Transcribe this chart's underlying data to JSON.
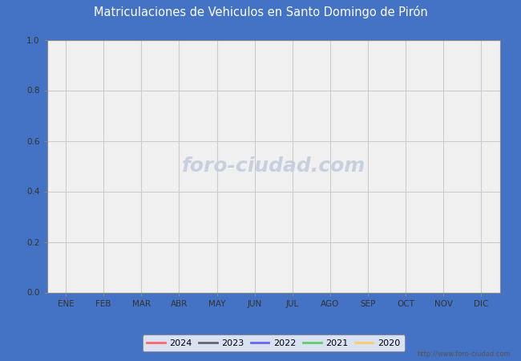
{
  "title": "Matriculaciones de Vehiculos en Santo Domingo de Pirón",
  "title_color": "#ffffff",
  "title_bg_color": "#4472c4",
  "months": [
    "ENE",
    "FEB",
    "MAR",
    "ABR",
    "MAY",
    "JUN",
    "JUL",
    "AGO",
    "SEP",
    "OCT",
    "NOV",
    "DIC"
  ],
  "ylim": [
    0.0,
    1.0
  ],
  "yticks": [
    0.0,
    0.2,
    0.4,
    0.6,
    0.8,
    1.0
  ],
  "series": [
    {
      "label": "2024",
      "color": "#ff6666"
    },
    {
      "label": "2023",
      "color": "#666666"
    },
    {
      "label": "2022",
      "color": "#6666ff"
    },
    {
      "label": "2021",
      "color": "#66cc66"
    },
    {
      "label": "2020",
      "color": "#ffcc66"
    }
  ],
  "outer_bg_color": "#4472c4",
  "inner_bg_color": "#ffffff",
  "plot_bg_color": "#f0f0f0",
  "grid_color": "#cccccc",
  "watermark_text": "foro-ciudad.com",
  "watermark_color": "#c8d0e0",
  "url_text": "http://www.foro-ciudad.com",
  "url_color": "#555555",
  "legend_bg": "#ffffff",
  "legend_edge": "#888888",
  "spine_color": "#888888",
  "tick_color": "#333333"
}
